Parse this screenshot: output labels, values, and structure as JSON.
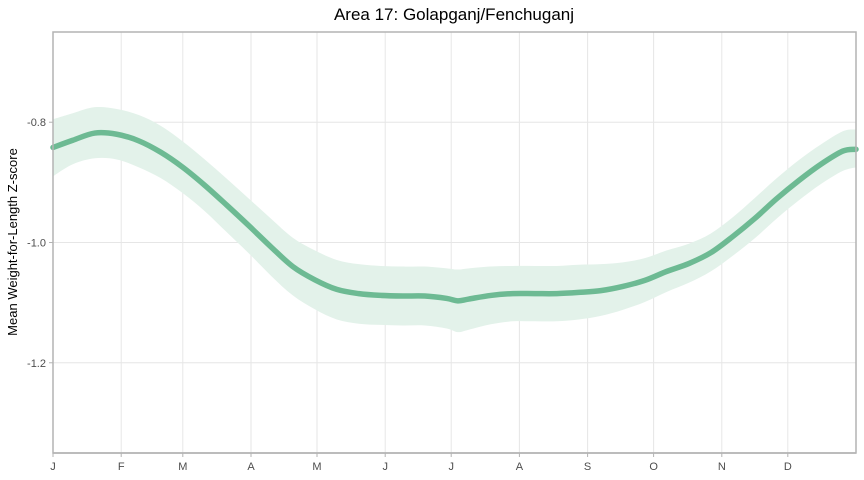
{
  "chart_data": {
    "type": "line",
    "title": "Area 17: Golapganj/Fenchuganj",
    "xlabel": "",
    "ylabel": "Mean Weight-for-Length Z-score",
    "x_unit": "day of year",
    "xlim": [
      1,
      366
    ],
    "ylim": [
      -1.35,
      -0.65
    ],
    "x_ticks": [
      {
        "label": "J",
        "value": 1
      },
      {
        "label": "F",
        "value": 32
      },
      {
        "label": "M",
        "value": 60
      },
      {
        "label": "A",
        "value": 91
      },
      {
        "label": "M",
        "value": 121
      },
      {
        "label": "J",
        "value": 152
      },
      {
        "label": "J",
        "value": 182
      },
      {
        "label": "A",
        "value": 213
      },
      {
        "label": "S",
        "value": 244
      },
      {
        "label": "O",
        "value": 274
      },
      {
        "label": "N",
        "value": 305
      },
      {
        "label": "D",
        "value": 335
      }
    ],
    "y_ticks": [
      {
        "label": "-0.8",
        "value": -0.8
      },
      {
        "label": "-1.0",
        "value": -1.0
      },
      {
        "label": "-1.2",
        "value": -1.2
      }
    ],
    "grid": true,
    "legend": "none",
    "colors": {
      "line": "#6dba93",
      "band": "#e3f2ea"
    },
    "series": [
      {
        "x": [
          1,
          10,
          20,
          30,
          40,
          50,
          60,
          70,
          80,
          90,
          100,
          110,
          120,
          130,
          140,
          150,
          160,
          170,
          180,
          185,
          190,
          200,
          210,
          220,
          230,
          240,
          250,
          260,
          270,
          280,
          290,
          300,
          310,
          320,
          330,
          340,
          350,
          360,
          366
        ],
        "y": [
          -0.842,
          -0.83,
          -0.818,
          -0.82,
          -0.831,
          -0.85,
          -0.875,
          -0.905,
          -0.938,
          -0.972,
          -1.007,
          -1.04,
          -1.062,
          -1.078,
          -1.085,
          -1.088,
          -1.089,
          -1.089,
          -1.093,
          -1.097,
          -1.094,
          -1.088,
          -1.085,
          -1.085,
          -1.085,
          -1.083,
          -1.08,
          -1.073,
          -1.063,
          -1.048,
          -1.035,
          -1.017,
          -0.99,
          -0.96,
          -0.927,
          -0.897,
          -0.87,
          -0.848,
          -0.845
        ],
        "lower": [
          -0.89,
          -0.87,
          -0.86,
          -0.862,
          -0.875,
          -0.893,
          -0.918,
          -0.948,
          -0.983,
          -1.018,
          -1.055,
          -1.088,
          -1.111,
          -1.128,
          -1.135,
          -1.137,
          -1.138,
          -1.138,
          -1.143,
          -1.149,
          -1.145,
          -1.136,
          -1.131,
          -1.131,
          -1.131,
          -1.128,
          -1.122,
          -1.112,
          -1.099,
          -1.082,
          -1.067,
          -1.048,
          -1.022,
          -0.993,
          -0.96,
          -0.93,
          -0.903,
          -0.881,
          -0.875
        ],
        "upper": [
          -0.795,
          -0.785,
          -0.775,
          -0.778,
          -0.788,
          -0.806,
          -0.832,
          -0.862,
          -0.894,
          -0.927,
          -0.96,
          -0.992,
          -1.013,
          -1.029,
          -1.036,
          -1.039,
          -1.04,
          -1.04,
          -1.043,
          -1.045,
          -1.043,
          -1.04,
          -1.039,
          -1.039,
          -1.039,
          -1.037,
          -1.036,
          -1.033,
          -1.026,
          -1.013,
          -1.002,
          -0.985,
          -0.958,
          -0.926,
          -0.893,
          -0.863,
          -0.837,
          -0.815,
          -0.812
        ]
      }
    ]
  }
}
